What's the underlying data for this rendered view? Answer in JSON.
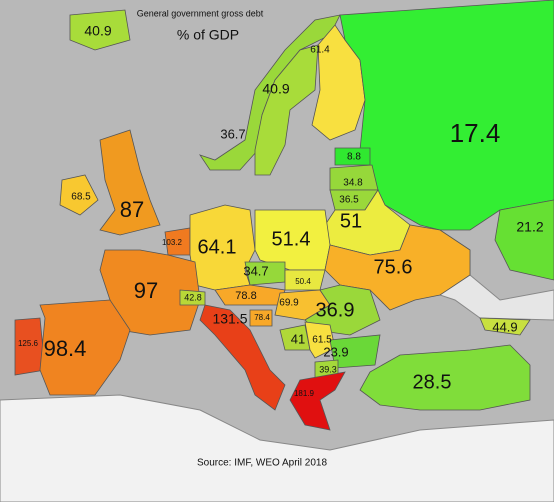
{
  "map": {
    "title": "General government gross debt",
    "subtitle": "% of GDP",
    "source": "Source: IMF, WEO April 2018",
    "regions": [
      {
        "label": "40.9",
        "color": "#a8dc3a"
      },
      {
        "label": "36.7",
        "color": "#9ad83a"
      },
      {
        "label": "40.9",
        "color": "#a8dc3a"
      },
      {
        "label": "61.4",
        "color": "#f8e040"
      },
      {
        "label": "17.4",
        "color": "#33ee33"
      },
      {
        "label": "8.8",
        "color": "#30e830"
      },
      {
        "label": "34.8",
        "color": "#96d83a"
      },
      {
        "label": "36.5",
        "color": "#9ad83a"
      },
      {
        "label": "51",
        "color": "#ecec40"
      },
      {
        "label": "68.5",
        "color": "#f8c830"
      },
      {
        "label": "87",
        "color": "#f09a20"
      },
      {
        "label": "103.2",
        "color": "#f07a20"
      },
      {
        "label": "64.1",
        "color": "#f8d838"
      },
      {
        "label": "51.4",
        "color": "#f2f040"
      },
      {
        "label": "75.6",
        "color": "#f8b028"
      },
      {
        "label": "21.2",
        "color": "#66e033"
      },
      {
        "label": "97",
        "color": "#f08a20"
      },
      {
        "label": "34.7",
        "color": "#96d83a"
      },
      {
        "label": "50.4",
        "color": "#e8e840"
      },
      {
        "label": "78.8",
        "color": "#f8a828"
      },
      {
        "label": "42.8",
        "color": "#b8d838"
      },
      {
        "label": "69.9",
        "color": "#f8c030"
      },
      {
        "label": "36.9",
        "color": "#9ad83a"
      },
      {
        "label": "78.4",
        "color": "#f8a828"
      },
      {
        "label": "41",
        "color": "#b0d838"
      },
      {
        "label": "61.5",
        "color": "#f8e040"
      },
      {
        "label": "23.9",
        "color": "#6ad838"
      },
      {
        "label": "125.6",
        "color": "#e85020"
      },
      {
        "label": "98.4",
        "color": "#f08420"
      },
      {
        "label": "131.5",
        "color": "#e84018"
      },
      {
        "label": "39.3",
        "color": "#a4d83a"
      },
      {
        "label": "181.9",
        "color": "#e01010"
      },
      {
        "label": "28.5",
        "color": "#80dd3a"
      },
      {
        "label": "44.9",
        "color": "#c8e040"
      }
    ]
  }
}
